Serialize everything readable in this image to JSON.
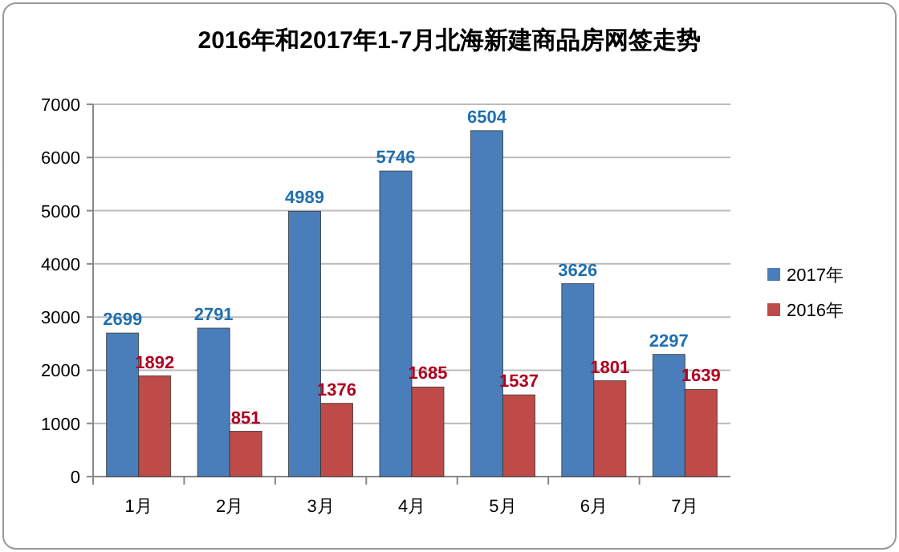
{
  "chart_data": {
    "type": "bar",
    "title": "2016年和2017年1-7月北海新建商品房网签走势",
    "categories": [
      "1月",
      "2月",
      "3月",
      "4月",
      "5月",
      "6月",
      "7月"
    ],
    "series": [
      {
        "name": "2017年",
        "color": "#4a7ebb",
        "values": [
          2699,
          2791,
          4989,
          5746,
          6504,
          3626,
          2297
        ]
      },
      {
        "name": "2016年",
        "color": "#be4b48",
        "values": [
          1892,
          851,
          1376,
          1685,
          1537,
          1801,
          1639
        ]
      }
    ],
    "ylim": [
      0,
      7000
    ],
    "yticks": [
      0,
      1000,
      2000,
      3000,
      4000,
      5000,
      6000,
      7000
    ],
    "grid": "y",
    "legend": "right",
    "data_labels": true
  }
}
